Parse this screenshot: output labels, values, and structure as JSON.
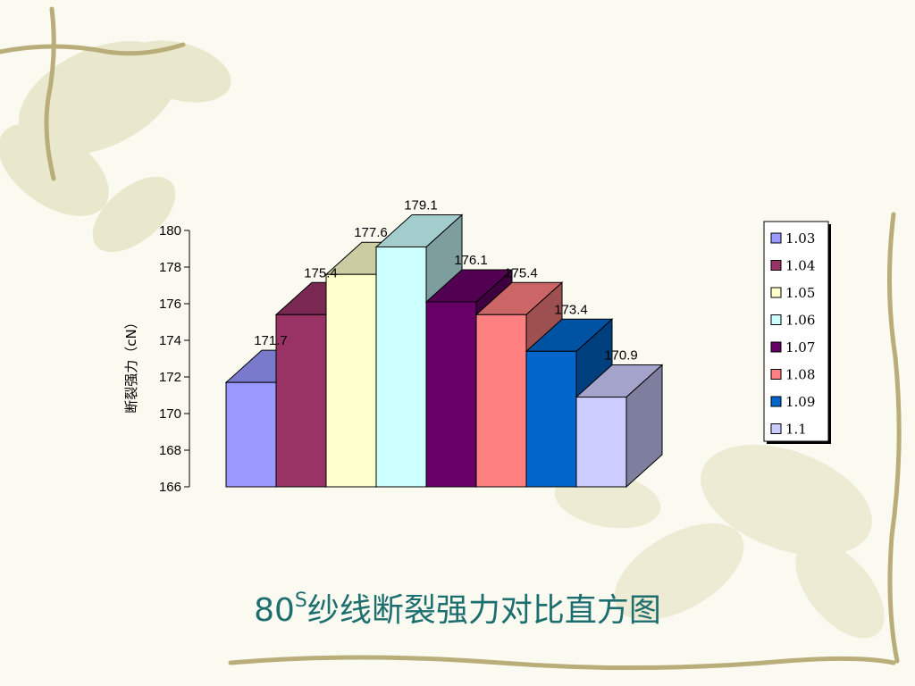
{
  "page": {
    "title_prefix": "80",
    "title_sup": "S",
    "title_main": "纱线断裂强力对比直方图"
  },
  "chart_data": {
    "type": "bar",
    "title": "80S纱线断裂强力对比直方图",
    "ylabel": "断裂强力（cN）",
    "xlabel": "",
    "ylim": [
      166,
      180
    ],
    "yticks": [
      166,
      168,
      170,
      172,
      174,
      176,
      178,
      180
    ],
    "grid": false,
    "legend_position": "right",
    "three_d": true,
    "series": [
      {
        "name": "1.03",
        "value": 171.7,
        "label": "171.7",
        "color": "#9999ff"
      },
      {
        "name": "1.04",
        "value": 175.4,
        "label": "175.4",
        "color": "#993366"
      },
      {
        "name": "1.05",
        "value": 177.6,
        "label": "177.6",
        "color": "#ffffcc"
      },
      {
        "name": "1.06",
        "value": 179.1,
        "label": "179.1",
        "color": "#ccffff"
      },
      {
        "name": "1.07",
        "value": 176.1,
        "label": "176.1",
        "color": "#660066"
      },
      {
        "name": "1.08",
        "value": 175.4,
        "label": "175.4",
        "color": "#ff8080"
      },
      {
        "name": "1.09",
        "value": 173.4,
        "label": "173.4",
        "color": "#0066cc"
      },
      {
        "name": "1.1",
        "value": 170.9,
        "label": "170.9",
        "color": "#ccccff"
      }
    ]
  }
}
